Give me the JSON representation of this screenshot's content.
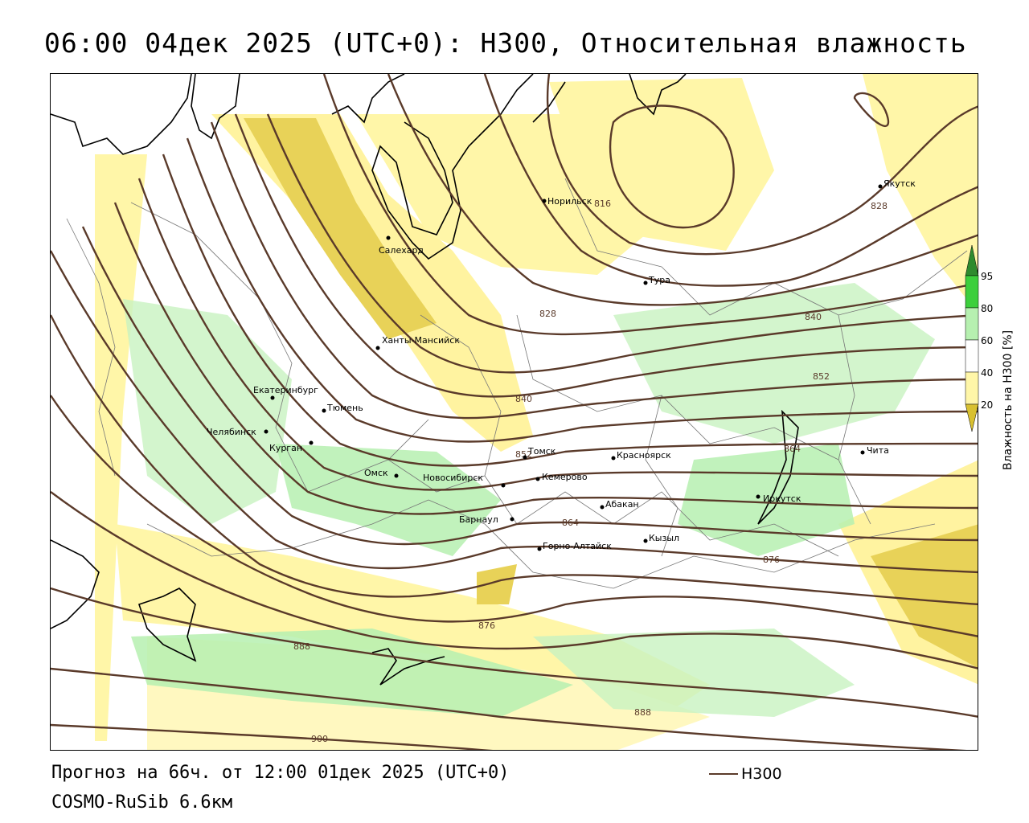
{
  "title": "06:00 04дек 2025 (UTC+0): H300, Относительная влажность",
  "forecast": "Прогноз на 66ч. от 12:00 01дек 2025 (UTC+0)",
  "model": "COSMO-RuSib 6.6км",
  "legend_label": "H300",
  "colorbar": {
    "title": "Влажность на H300 [%]",
    "ticks": [
      "95",
      "80",
      "60",
      "40",
      "20"
    ],
    "colors": {
      "95": "#2e8b2e",
      "80": "#3ccf3c",
      "60": "#b6f0b0",
      "40": "#ffffff",
      "20": "#fff6a8",
      "low": "#d8c030"
    }
  },
  "colors": {
    "isoline": "#5a3a2a",
    "coast": "#000000",
    "border": "#555555"
  },
  "cities": [
    {
      "name": "Норильск"
    },
    {
      "name": "Якутск"
    },
    {
      "name": "Салехард"
    },
    {
      "name": "Тура"
    },
    {
      "name": "Ханты-Мансийск"
    },
    {
      "name": "Екатеринбург"
    },
    {
      "name": "Тюмень"
    },
    {
      "name": "Челябинск"
    },
    {
      "name": "Курган"
    },
    {
      "name": "Омск"
    },
    {
      "name": "Новосибирск"
    },
    {
      "name": "Томск"
    },
    {
      "name": "Кемерово"
    },
    {
      "name": "Красноярск"
    },
    {
      "name": "Абакан"
    },
    {
      "name": "Барнаул"
    },
    {
      "name": "Горно-Алтайск"
    },
    {
      "name": "Кызыл"
    },
    {
      "name": "Иркутск"
    },
    {
      "name": "Чита"
    }
  ],
  "isoline_labels": [
    "816",
    "828",
    "828",
    "840",
    "840",
    "852",
    "852",
    "864",
    "864",
    "876",
    "876",
    "888",
    "888",
    "900"
  ]
}
